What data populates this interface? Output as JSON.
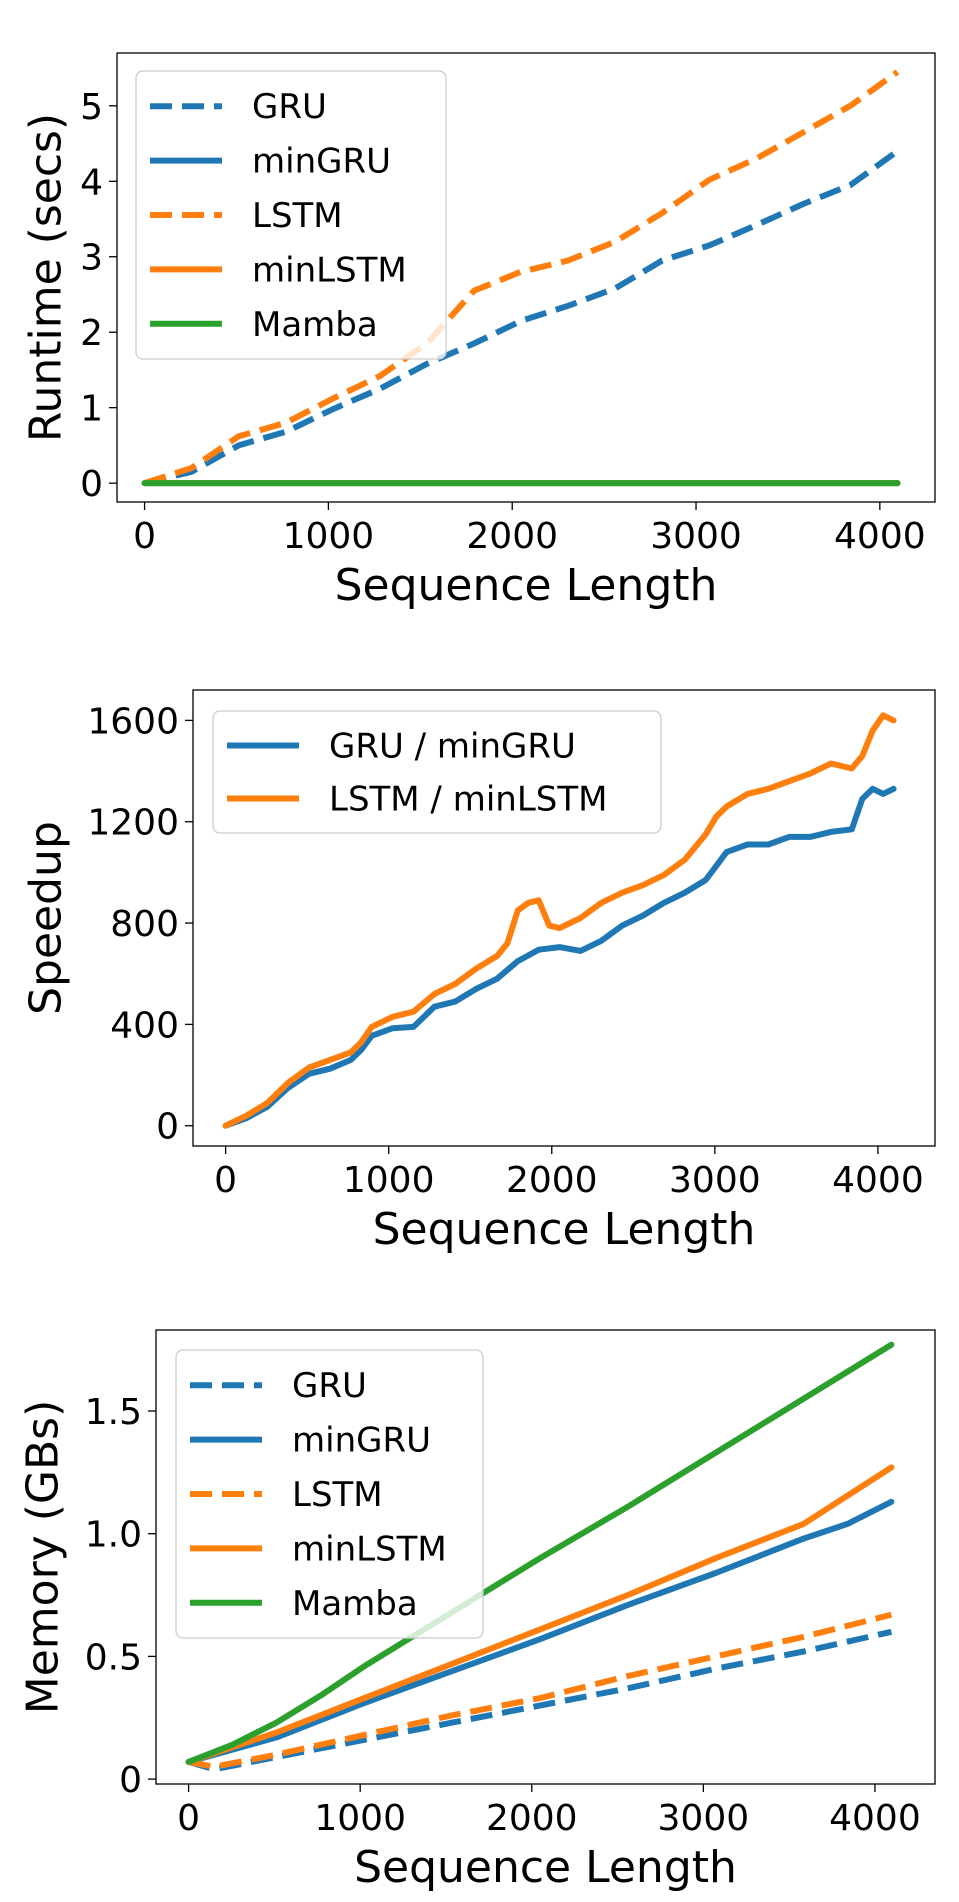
{
  "chart_data": [
    {
      "type": "line",
      "xlabel": "Sequence Length",
      "ylabel": "Runtime (secs)",
      "xlim": [
        -150,
        4300
      ],
      "ylim": [
        -0.25,
        5.7
      ],
      "xticks": [
        0,
        1000,
        2000,
        3000,
        4000
      ],
      "yticks": [
        0,
        1,
        2,
        3,
        4,
        5
      ],
      "ytick_labels": [
        "0",
        "1",
        "2",
        "3",
        "4",
        "5"
      ],
      "legend_position": "top-left",
      "grid": false,
      "series": [
        {
          "name": "GRU",
          "color": "#1f77b4",
          "style": "dashed",
          "points": [
            [
              0,
              0
            ],
            [
              256,
              0.15
            ],
            [
              512,
              0.5
            ],
            [
              768,
              0.68
            ],
            [
              1024,
              0.98
            ],
            [
              1280,
              1.25
            ],
            [
              1536,
              1.58
            ],
            [
              1792,
              1.85
            ],
            [
              2048,
              2.15
            ],
            [
              2304,
              2.35
            ],
            [
              2560,
              2.58
            ],
            [
              2816,
              2.95
            ],
            [
              3072,
              3.15
            ],
            [
              3328,
              3.42
            ],
            [
              3584,
              3.7
            ],
            [
              3840,
              3.95
            ],
            [
              4096,
              4.4
            ]
          ]
        },
        {
          "name": "minGRU",
          "color": "#1f77b4",
          "style": "solid",
          "points": [
            [
              0,
              0.0
            ],
            [
              4096,
              0.0
            ]
          ]
        },
        {
          "name": "LSTM",
          "color": "#ff7f0e",
          "style": "dashed",
          "points": [
            [
              0,
              0
            ],
            [
              256,
              0.2
            ],
            [
              512,
              0.62
            ],
            [
              768,
              0.8
            ],
            [
              1024,
              1.12
            ],
            [
              1280,
              1.42
            ],
            [
              1536,
              1.85
            ],
            [
              1792,
              2.55
            ],
            [
              2048,
              2.8
            ],
            [
              2304,
              2.95
            ],
            [
              2560,
              3.2
            ],
            [
              2816,
              3.58
            ],
            [
              3072,
              4.02
            ],
            [
              3328,
              4.3
            ],
            [
              3584,
              4.65
            ],
            [
              3840,
              5.0
            ],
            [
              4096,
              5.45
            ]
          ]
        },
        {
          "name": "minLSTM",
          "color": "#ff7f0e",
          "style": "solid",
          "points": [
            [
              0,
              0.0
            ],
            [
              4096,
              0.0
            ]
          ]
        },
        {
          "name": "Mamba",
          "color": "#2ca02c",
          "style": "solid",
          "points": [
            [
              0,
              0.0
            ],
            [
              4096,
              0.0
            ]
          ]
        }
      ]
    },
    {
      "type": "line",
      "xlabel": "Sequence Length",
      "ylabel": "Speedup",
      "xlim": [
        -200,
        4350
      ],
      "ylim": [
        -80,
        1720
      ],
      "xticks": [
        0,
        1000,
        2000,
        3000,
        4000
      ],
      "yticks": [
        0,
        400,
        800,
        1200,
        1600
      ],
      "ytick_labels": [
        "0",
        "400",
        "800",
        "1200",
        "1600"
      ],
      "legend_position": "top-left",
      "grid": false,
      "series": [
        {
          "name": "GRU / minGRU",
          "color": "#1f77b4",
          "style": "solid",
          "points": [
            [
              0,
              0
            ],
            [
              128,
              30
            ],
            [
              256,
              75
            ],
            [
              384,
              150
            ],
            [
              512,
              205
            ],
            [
              640,
              225
            ],
            [
              768,
              260
            ],
            [
              832,
              300
            ],
            [
              896,
              355
            ],
            [
              1024,
              385
            ],
            [
              1152,
              390
            ],
            [
              1280,
              470
            ],
            [
              1408,
              490
            ],
            [
              1536,
              540
            ],
            [
              1664,
              580
            ],
            [
              1792,
              650
            ],
            [
              1920,
              695
            ],
            [
              2048,
              705
            ],
            [
              2176,
              690
            ],
            [
              2304,
              730
            ],
            [
              2432,
              790
            ],
            [
              2560,
              830
            ],
            [
              2688,
              880
            ],
            [
              2816,
              920
            ],
            [
              2944,
              970
            ],
            [
              3072,
              1080
            ],
            [
              3200,
              1110
            ],
            [
              3328,
              1110
            ],
            [
              3456,
              1140
            ],
            [
              3584,
              1140
            ],
            [
              3712,
              1160
            ],
            [
              3840,
              1170
            ],
            [
              3904,
              1290
            ],
            [
              3968,
              1330
            ],
            [
              4032,
              1310
            ],
            [
              4096,
              1330
            ]
          ]
        },
        {
          "name": "LSTM / minLSTM",
          "color": "#ff7f0e",
          "style": "solid",
          "points": [
            [
              0,
              0
            ],
            [
              128,
              40
            ],
            [
              256,
              90
            ],
            [
              384,
              170
            ],
            [
              512,
              230
            ],
            [
              640,
              260
            ],
            [
              768,
              290
            ],
            [
              832,
              330
            ],
            [
              896,
              390
            ],
            [
              1024,
              430
            ],
            [
              1152,
              450
            ],
            [
              1280,
              520
            ],
            [
              1408,
              560
            ],
            [
              1536,
              620
            ],
            [
              1664,
              670
            ],
            [
              1728,
              720
            ],
            [
              1792,
              850
            ],
            [
              1856,
              880
            ],
            [
              1920,
              890
            ],
            [
              1984,
              790
            ],
            [
              2048,
              780
            ],
            [
              2176,
              820
            ],
            [
              2304,
              880
            ],
            [
              2432,
              920
            ],
            [
              2560,
              950
            ],
            [
              2688,
              990
            ],
            [
              2816,
              1050
            ],
            [
              2944,
              1150
            ],
            [
              3008,
              1220
            ],
            [
              3072,
              1260
            ],
            [
              3200,
              1310
            ],
            [
              3328,
              1330
            ],
            [
              3456,
              1360
            ],
            [
              3584,
              1390
            ],
            [
              3712,
              1430
            ],
            [
              3840,
              1410
            ],
            [
              3904,
              1460
            ],
            [
              3968,
              1560
            ],
            [
              4032,
              1620
            ],
            [
              4096,
              1600
            ]
          ]
        }
      ]
    },
    {
      "type": "line",
      "xlabel": "Sequence Length",
      "ylabel": "Memory (GBs)",
      "xlim": [
        -190,
        4350
      ],
      "ylim": [
        -0.02,
        1.83
      ],
      "xticks": [
        0,
        1000,
        2000,
        3000,
        4000
      ],
      "yticks": [
        0,
        0.5,
        1.0,
        1.5
      ],
      "ytick_labels": [
        "0",
        "0.5",
        "1.0",
        "1.5"
      ],
      "legend_position": "top-left",
      "grid": false,
      "series": [
        {
          "name": "GRU",
          "color": "#1f77b4",
          "style": "dashed",
          "points": [
            [
              0,
              0.07
            ],
            [
              150,
              0.04
            ],
            [
              512,
              0.09
            ],
            [
              1024,
              0.16
            ],
            [
              1536,
              0.23
            ],
            [
              2048,
              0.3
            ],
            [
              2560,
              0.37
            ],
            [
              3072,
              0.45
            ],
            [
              3584,
              0.52
            ],
            [
              4096,
              0.6
            ]
          ]
        },
        {
          "name": "minGRU",
          "color": "#1f77b4",
          "style": "solid",
          "points": [
            [
              0,
              0.07
            ],
            [
              256,
              0.12
            ],
            [
              512,
              0.17
            ],
            [
              768,
              0.24
            ],
            [
              1024,
              0.31
            ],
            [
              1536,
              0.44
            ],
            [
              2048,
              0.57
            ],
            [
              2560,
              0.71
            ],
            [
              3072,
              0.84
            ],
            [
              3584,
              0.98
            ],
            [
              3840,
              1.04
            ],
            [
              4096,
              1.13
            ]
          ]
        },
        {
          "name": "LSTM",
          "color": "#ff7f0e",
          "style": "dashed",
          "points": [
            [
              0,
              0.07
            ],
            [
              150,
              0.05
            ],
            [
              512,
              0.1
            ],
            [
              1024,
              0.18
            ],
            [
              1536,
              0.26
            ],
            [
              2048,
              0.33
            ],
            [
              2560,
              0.42
            ],
            [
              3072,
              0.5
            ],
            [
              3584,
              0.58
            ],
            [
              4096,
              0.67
            ]
          ]
        },
        {
          "name": "minLSTM",
          "color": "#ff7f0e",
          "style": "solid",
          "points": [
            [
              0,
              0.07
            ],
            [
              256,
              0.13
            ],
            [
              512,
              0.19
            ],
            [
              768,
              0.26
            ],
            [
              1024,
              0.33
            ],
            [
              1536,
              0.47
            ],
            [
              2048,
              0.61
            ],
            [
              2560,
              0.75
            ],
            [
              3072,
              0.9
            ],
            [
              3584,
              1.04
            ],
            [
              4096,
              1.27
            ]
          ]
        },
        {
          "name": "Mamba",
          "color": "#2ca02c",
          "style": "solid",
          "points": [
            [
              0,
              0.07
            ],
            [
              256,
              0.14
            ],
            [
              512,
              0.23
            ],
            [
              768,
              0.34
            ],
            [
              1024,
              0.46
            ],
            [
              1536,
              0.68
            ],
            [
              2048,
              0.9
            ],
            [
              2560,
              1.11
            ],
            [
              3072,
              1.33
            ],
            [
              3584,
              1.55
            ],
            [
              4096,
              1.77
            ]
          ]
        }
      ]
    }
  ]
}
